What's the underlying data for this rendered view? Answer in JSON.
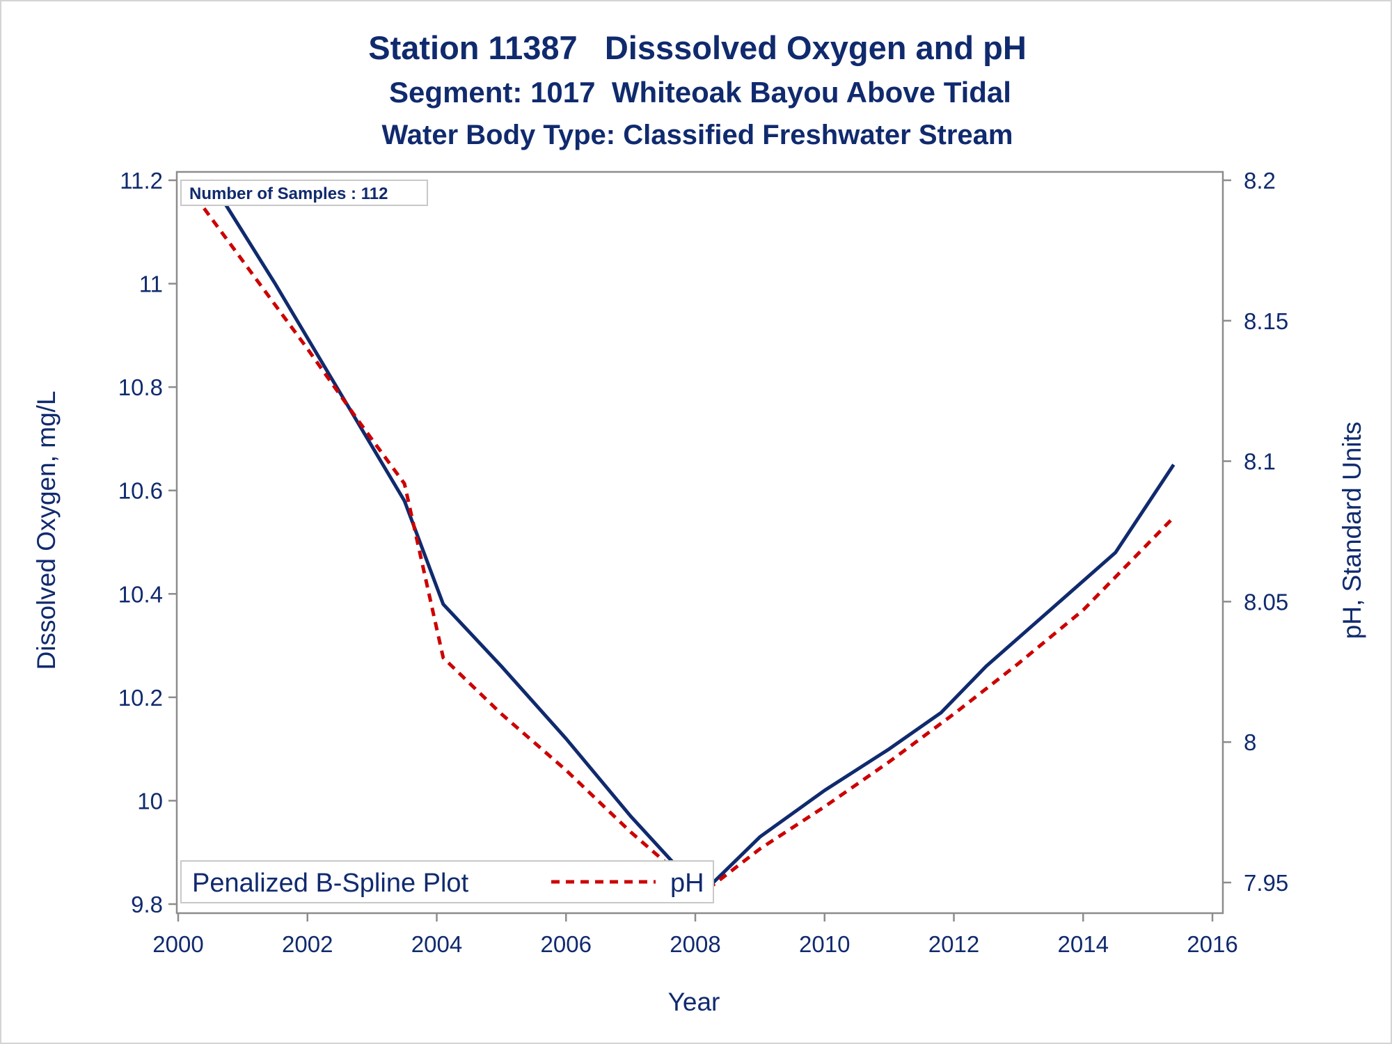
{
  "chart_data": {
    "type": "line",
    "title": "Station 11387   Disssolved Oxygen and pH",
    "subtitle": "Segment: 1017  Whiteoak Bayou Above Tidal",
    "subtitle2": "Water Body Type: Classified Freshwater Stream",
    "xlabel": "Year",
    "ylabel": "Dissolved Oxygen, mg/L",
    "y2label": "pH, Standard Units",
    "xlim": [
      2000,
      2016
    ],
    "ylim": [
      9.8,
      11.2
    ],
    "y2lim": [
      7.95,
      8.2
    ],
    "x_ticks": [
      "2000",
      "2002",
      "2004",
      "2006",
      "2008",
      "2010",
      "2012",
      "2014",
      "2016"
    ],
    "y_ticks": [
      "9.8",
      "10",
      "10.2",
      "10.4",
      "10.6",
      "10.8",
      "11",
      "11.2"
    ],
    "y2_ticks": [
      "7.95",
      "8",
      "8.05",
      "8.1",
      "8.15",
      "8.2"
    ],
    "annotation": "Number of Samples : 112",
    "legend": {
      "title": "Penalized B-Spline Plot",
      "placement": "bottom-left",
      "entries": [
        "pH"
      ]
    },
    "grid": false,
    "series": [
      {
        "axis": "left",
        "color": "#102a6e",
        "style": "solid",
        "x": [
          2000.5,
          2001.5,
          2002.5,
          2003.5,
          2004.1,
          2005.0,
          2006.0,
          2007.0,
          2008.1,
          2009.0,
          2010.0,
          2011.0,
          2011.8,
          2012.5,
          2013.5,
          2014.5,
          2015.4
        ],
        "y": [
          11.2,
          11.0,
          10.79,
          10.58,
          10.38,
          10.26,
          10.12,
          9.97,
          9.82,
          9.93,
          10.02,
          10.1,
          10.17,
          10.26,
          10.37,
          10.48,
          10.65
        ]
      },
      {
        "name": "pH",
        "axis": "right",
        "color": "#cc0000",
        "style": "dashed",
        "x": [
          2000.4,
          2001.2,
          2002.0,
          2002.8,
          2003.5,
          2004.1,
          2005.0,
          2006.0,
          2007.0,
          2008.1,
          2009.0,
          2010.0,
          2011.0,
          2012.0,
          2013.0,
          2014.0,
          2015.4
        ],
        "y": [
          8.19,
          8.165,
          8.14,
          8.114,
          8.092,
          8.03,
          8.01,
          7.99,
          7.968,
          7.946,
          7.962,
          7.977,
          7.993,
          8.01,
          8.028,
          8.047,
          8.08
        ]
      }
    ]
  }
}
